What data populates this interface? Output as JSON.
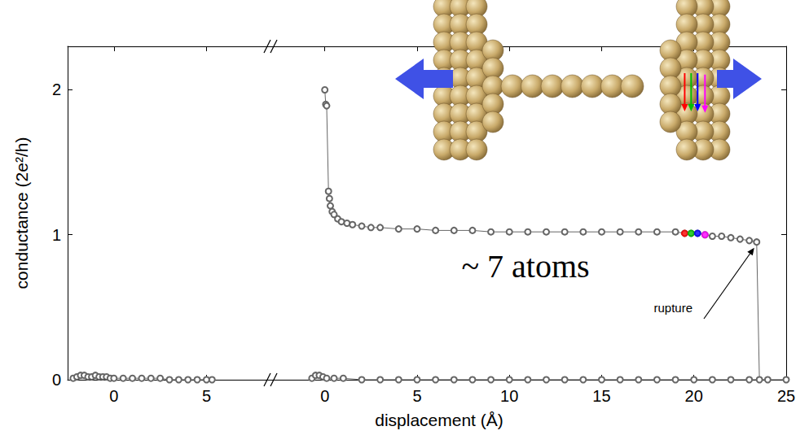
{
  "chart_data": [
    {
      "type": "line",
      "y_label": "conductance (2e²/h)",
      "xlim": [
        -2.5,
        8.5
      ],
      "xticks": [
        0,
        5
      ],
      "ylim": [
        0,
        2.3
      ],
      "yticks": [
        0,
        1,
        2
      ],
      "grid": false,
      "series": [
        {
          "color": "#666666",
          "marker": "circle",
          "line_style": "solid",
          "x": [
            -2.2,
            -2.0,
            -1.8,
            -1.6,
            -1.4,
            -1.2,
            -1.0,
            -0.8,
            -0.6,
            -0.4,
            -0.2,
            0,
            0.5,
            1,
            1.5,
            2,
            2.5,
            3,
            3.5,
            4,
            4.5,
            5,
            5.3
          ],
          "values": [
            0.01,
            0.02,
            0.03,
            0.03,
            0.02,
            0.02,
            0.03,
            0.02,
            0.02,
            0.02,
            0.01,
            0.01,
            0.01,
            0.01,
            0.01,
            0.01,
            0.01,
            0,
            0,
            0,
            0,
            0,
            0
          ]
        }
      ]
    },
    {
      "type": "line",
      "x_label": "displacement (Å)",
      "xlim": [
        -2.9,
        25
      ],
      "xticks": [
        0,
        5,
        10,
        15,
        20,
        25
      ],
      "ylim": [
        0,
        2.3
      ],
      "yticks": [
        0,
        1,
        2
      ],
      "grid": false,
      "annotations": [
        "~ 7 atoms",
        "rupture"
      ],
      "series": [
        {
          "color": "#666666",
          "marker": "circle",
          "line_style": "solid",
          "x": [
            -0.7,
            -0.5,
            -0.3,
            -0.1,
            0.1,
            0.5,
            1,
            2,
            3,
            4,
            5,
            6,
            7,
            8,
            9,
            10,
            11,
            12,
            13,
            14,
            15,
            16,
            17,
            18,
            19,
            20,
            21,
            22,
            23,
            24,
            25
          ],
          "values": [
            0.01,
            0.03,
            0.03,
            0.02,
            0.01,
            0.01,
            0.01,
            0,
            0,
            0,
            0,
            0,
            0,
            0,
            0,
            0,
            0,
            0,
            0,
            0,
            0,
            0,
            0,
            0,
            0,
            0,
            0,
            0,
            0,
            0,
            0
          ]
        },
        {
          "color": "#666666",
          "marker": "circle",
          "line_style": "solid",
          "x": [
            0,
            0.05,
            0.1,
            0.2,
            0.25,
            0.3,
            0.4,
            0.5,
            0.7,
            0.9,
            1.2,
            1.5,
            2,
            2.5,
            3,
            4,
            5,
            6,
            7,
            8,
            9,
            10,
            11,
            12,
            13,
            14,
            15,
            16,
            17,
            18,
            19,
            19.5,
            19.85,
            20.2,
            20.6,
            21,
            21.5,
            22,
            22.5,
            23,
            23.4,
            23.55
          ],
          "values": [
            2.0,
            1.9,
            1.89,
            1.3,
            1.25,
            1.2,
            1.16,
            1.14,
            1.11,
            1.09,
            1.08,
            1.07,
            1.06,
            1.05,
            1.05,
            1.04,
            1.04,
            1.03,
            1.03,
            1.03,
            1.02,
            1.02,
            1.02,
            1.02,
            1.02,
            1.02,
            1.02,
            1.02,
            1.02,
            1.02,
            1.02,
            1.01,
            1.01,
            1.01,
            1.0,
            0.99,
            0.99,
            0.98,
            0.97,
            0.96,
            0.95,
            0
          ]
        },
        {
          "type": "scatter",
          "marker": "circle",
          "x": [
            19.5,
            19.85,
            20.2,
            20.6
          ],
          "values": [
            1.01,
            1.01,
            1.01,
            1.0
          ],
          "colors": [
            "#ff0000",
            "#00c000",
            "#0000ff",
            "#ff00ff"
          ]
        }
      ]
    }
  ]
}
